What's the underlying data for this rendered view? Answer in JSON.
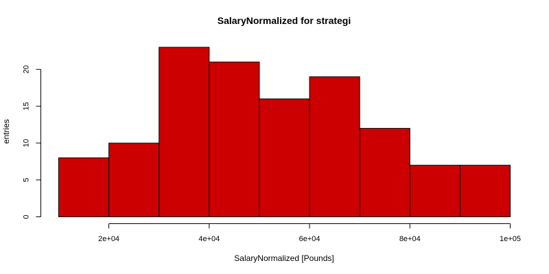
{
  "chart_data": {
    "type": "bar",
    "subtype": "histogram",
    "title": "SalaryNormalized for strategi",
    "xlabel": "SalaryNormalized [Pounds]",
    "ylabel": "entries",
    "bins": [
      {
        "start": 10000,
        "end": 20000,
        "count": 8
      },
      {
        "start": 20000,
        "end": 30000,
        "count": 10
      },
      {
        "start": 30000,
        "end": 40000,
        "count": 23
      },
      {
        "start": 40000,
        "end": 50000,
        "count": 21
      },
      {
        "start": 50000,
        "end": 60000,
        "count": 16
      },
      {
        "start": 60000,
        "end": 70000,
        "count": 19
      },
      {
        "start": 70000,
        "end": 80000,
        "count": 12
      },
      {
        "start": 80000,
        "end": 90000,
        "count": 7
      },
      {
        "start": 90000,
        "end": 100000,
        "count": 7
      }
    ],
    "xlim": [
      10000,
      100000
    ],
    "ylim": [
      0,
      23
    ],
    "x_ticks": [
      {
        "value": 20000,
        "label": "2e+04"
      },
      {
        "value": 40000,
        "label": "4e+04"
      },
      {
        "value": 60000,
        "label": "6e+04"
      },
      {
        "value": 80000,
        "label": "8e+04"
      },
      {
        "value": 100000,
        "label": "1e+05"
      }
    ],
    "y_ticks": [
      {
        "value": 0,
        "label": "0"
      },
      {
        "value": 5,
        "label": "5"
      },
      {
        "value": 10,
        "label": "10"
      },
      {
        "value": 15,
        "label": "15"
      },
      {
        "value": 20,
        "label": "20"
      }
    ],
    "bar_color": "#CC0000",
    "border_color": "#000000",
    "grid": false,
    "legend": "none"
  }
}
